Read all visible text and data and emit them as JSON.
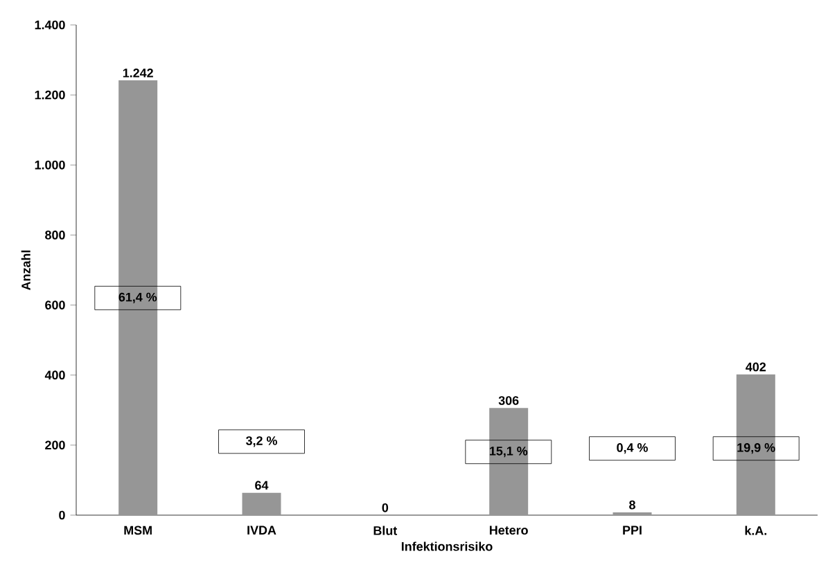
{
  "chart_data": {
    "type": "bar",
    "xlabel": "Infektionsrisiko",
    "ylabel": "Anzahl",
    "categories": [
      "MSM",
      "IVDA",
      "Blut",
      "Hetero",
      "PPI",
      "k.A."
    ],
    "values": [
      1242,
      64,
      0,
      306,
      8,
      402
    ],
    "value_labels": [
      "1.242",
      "64",
      "0",
      "306",
      "8",
      "402"
    ],
    "color": "#969696",
    "ylim": [
      0,
      1400
    ],
    "yticks": [
      0,
      200,
      400,
      600,
      800,
      {
        "value": 1000,
        "label": "1.000"
      },
      {
        "value": 1200,
        "label": "1.200"
      },
      {
        "value": 1400,
        "label": "1.400"
      }
    ],
    "grid": false,
    "annotations": [
      "61,4 %",
      "3,2 %",
      "15,1 %",
      "0,4 %",
      "19,9 %"
    ]
  }
}
